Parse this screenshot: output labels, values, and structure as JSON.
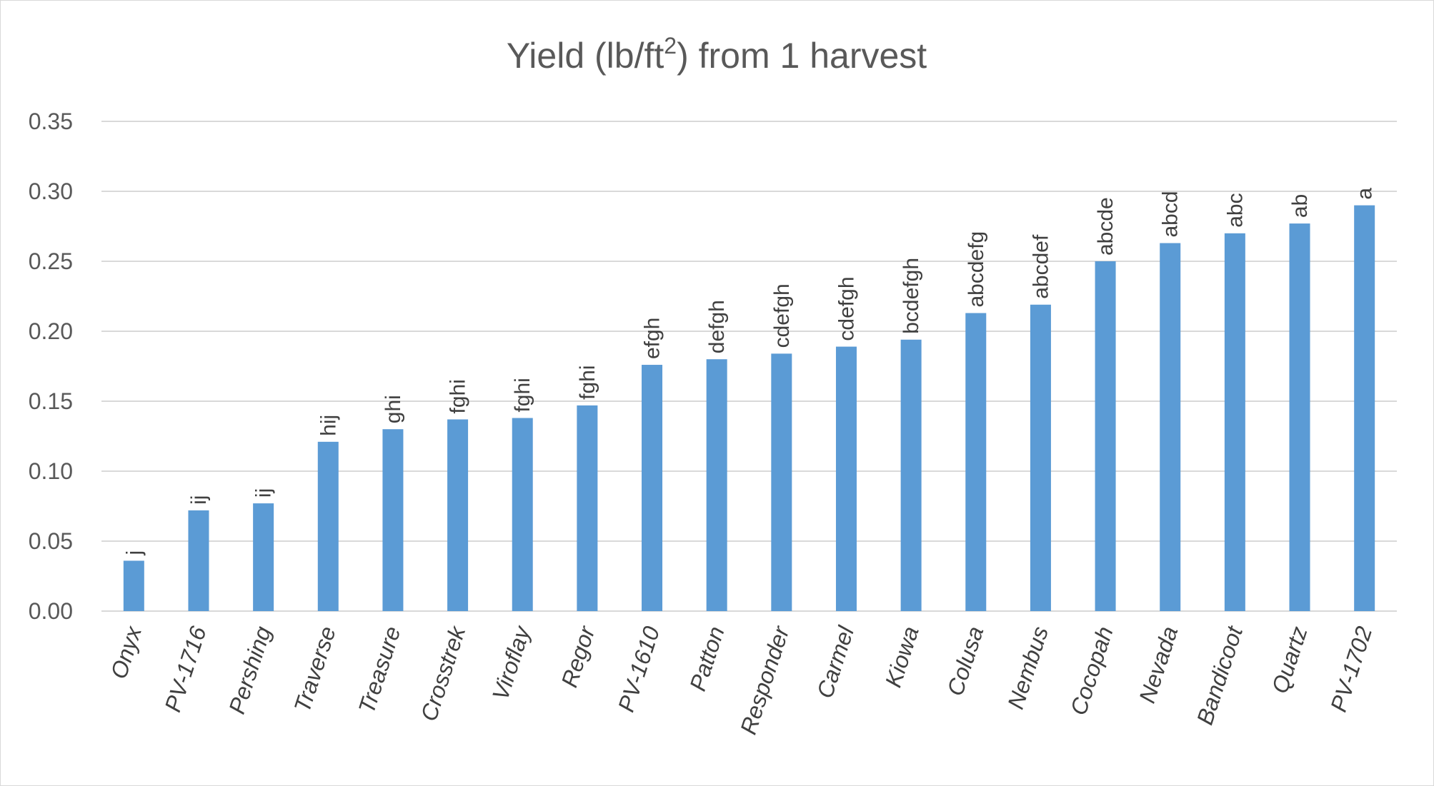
{
  "chart_data": {
    "type": "bar",
    "title": "Yield (lb/ft",
    "title_superscript": "2",
    "title_suffix": ") from 1 harvest",
    "xlabel": "",
    "ylabel": "",
    "ylim": [
      0,
      0.35
    ],
    "yticks": [
      "0.00",
      "0.05",
      "0.10",
      "0.15",
      "0.20",
      "0.25",
      "0.30",
      "0.35"
    ],
    "grid": true,
    "legend": "none",
    "bar_color": "#5b9bd5",
    "categories": [
      "Onyx",
      "PV-1716",
      "Pershing",
      "Traverse",
      "Treasure",
      "Crosstrek",
      "Viroflay",
      "Regor",
      "PV-1610",
      "Patton",
      "Responder",
      "Carmel",
      "Kiowa",
      "Colusa",
      "Nembus",
      "Cocopah",
      "Nevada",
      "Bandicoot",
      "Quartz",
      "PV-1702"
    ],
    "values": [
      0.036,
      0.072,
      0.077,
      0.121,
      0.13,
      0.137,
      0.138,
      0.147,
      0.176,
      0.18,
      0.184,
      0.189,
      0.194,
      0.213,
      0.219,
      0.25,
      0.263,
      0.27,
      0.277,
      0.29
    ],
    "data_labels": [
      "j",
      "ij",
      "ij",
      "hij",
      "ghi",
      "fghi",
      "fghi",
      "fghi",
      "efgh",
      "defgh",
      "cdefgh",
      "cdefgh",
      "bcdefgh",
      "abcdefg",
      "abcdef",
      "abcde",
      "abcd",
      "abc",
      "ab",
      "a"
    ]
  }
}
